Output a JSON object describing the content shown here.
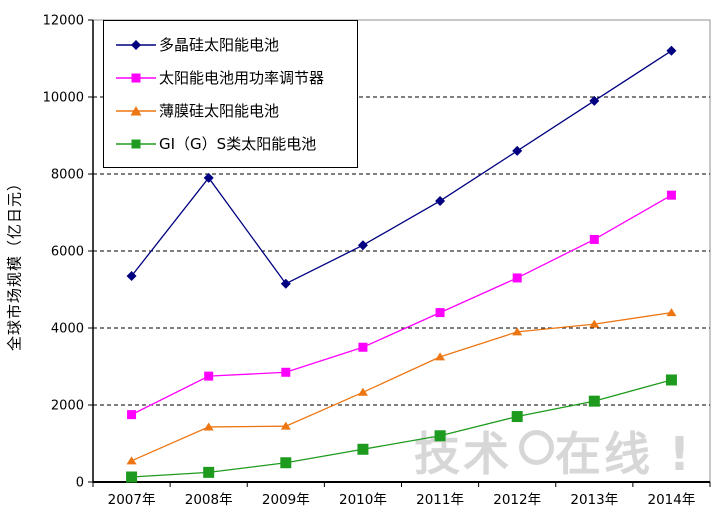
{
  "chart_data": {
    "type": "line",
    "title": "",
    "xlabel": "",
    "ylabel": "全球市场规模（亿日元）",
    "categories": [
      "2007年",
      "2008年",
      "2009年",
      "2010年",
      "2011年",
      "2012年",
      "2013年",
      "2014年"
    ],
    "yticks": [
      0,
      2000,
      4000,
      6000,
      8000,
      10000,
      12000
    ],
    "ylim": [
      0,
      12000
    ],
    "grid": "horizontal-dashed",
    "legend_position": "top-left-inside",
    "series": [
      {
        "name": "多晶硅太阳能电池",
        "color": "#000080",
        "marker": "diamond",
        "values": [
          5350,
          7900,
          5150,
          6150,
          7300,
          8600,
          9900,
          11200
        ]
      },
      {
        "name": "太阳能电池用功率调节器",
        "color": "#ff00ff",
        "marker": "square",
        "values": [
          1750,
          2750,
          2850,
          3500,
          4400,
          5300,
          6300,
          7450
        ]
      },
      {
        "name": "薄膜硅太阳能电池",
        "color": "#ed7612",
        "marker": "triangle",
        "values": [
          550,
          1430,
          1450,
          2330,
          3250,
          3900,
          4100,
          4400
        ]
      },
      {
        "name": "GI（G）S类太阳能电池",
        "color": "#1e9b1e",
        "marker": "square",
        "values": [
          130,
          250,
          500,
          850,
          1200,
          1700,
          2100,
          2650
        ]
      }
    ],
    "axis_color": "#000000",
    "plot_border_color": "#909090",
    "gridline_color": "#000000"
  },
  "watermark": {
    "left": "技术",
    "right": "在线",
    "exclaim": "!"
  }
}
